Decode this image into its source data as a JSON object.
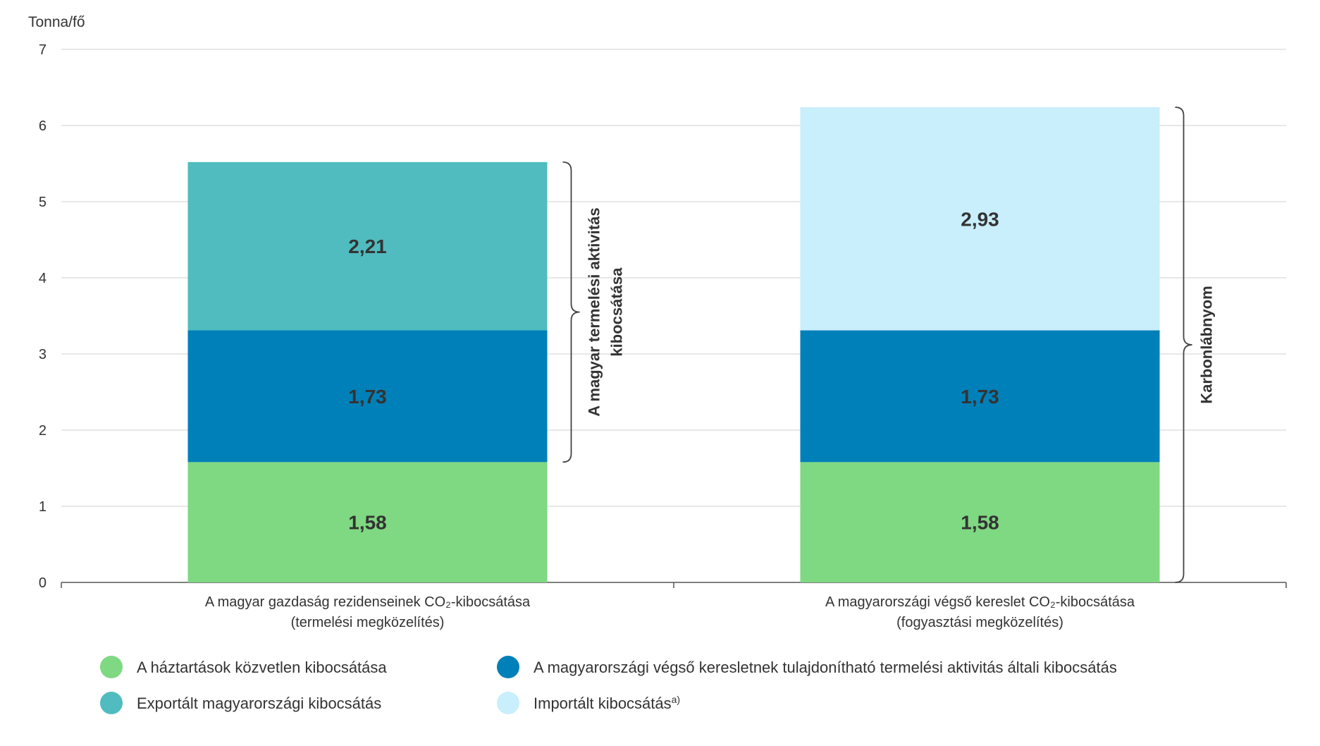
{
  "chart_data": {
    "type": "stacked-bar",
    "y_label": "Tonna/fő",
    "categories": [
      "A magyar gazdaság rezidenseinek CO₂-kibocsátása\n(termelési megközelítés)",
      "A magyarországi végső kereslet CO₂-kibocsátása\n(fogyasztási megközelítés)"
    ],
    "series": [
      {
        "name": "A háztartások közvetlen kibocsátása",
        "color": "#7fd882",
        "label_color": "#ffffff",
        "values": [
          1.58,
          1.58
        ],
        "value_labels": [
          "1,58",
          "1,58"
        ]
      },
      {
        "name": "A magyarországi végső keresletnek tulajdonítható termelési aktivitás általi kibocsátás",
        "color": "#0080b8",
        "label_color": "#ffffff",
        "values": [
          1.73,
          1.73
        ],
        "value_labels": [
          "1,73",
          "1,73"
        ]
      },
      {
        "name": "Exportált magyarországi kibocsátás",
        "color": "#50bcbf",
        "label_color": "#ffffff",
        "values": [
          2.21,
          null
        ],
        "value_labels": [
          "2,21",
          null
        ]
      },
      {
        "name": "Importált kibocsátás",
        "name_superscript": "a)",
        "color": "#c9eefc",
        "label_color": "#7a7a7a",
        "values": [
          null,
          2.93
        ],
        "value_labels": [
          null,
          "2,93"
        ]
      }
    ],
    "annotations": [
      {
        "text": [
          "A magyar termelési aktivitás",
          "kibocsátása"
        ],
        "category": 0,
        "from": 1.58,
        "to": 5.52
      },
      {
        "text": [
          "Karbonlábnyom"
        ],
        "category": 1,
        "from": 0,
        "to": 6.24
      }
    ],
    "ylim": [
      0,
      7
    ],
    "yticks": [
      0,
      1,
      2,
      3,
      4,
      5,
      6,
      7
    ],
    "grid": true
  }
}
